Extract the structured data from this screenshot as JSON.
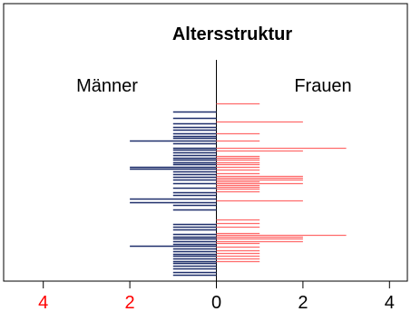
{
  "chart_data": {
    "type": "bar",
    "orientation": "horizontal",
    "title": "Altersstruktur",
    "xlim": [
      -4,
      4
    ],
    "x_ticks": [
      {
        "value": -4,
        "label": "4"
      },
      {
        "value": -2,
        "label": "2"
      },
      {
        "value": 0,
        "label": "0"
      },
      {
        "value": 2,
        "label": "2"
      },
      {
        "value": 4,
        "label": "4"
      }
    ],
    "grid": false,
    "series": [
      {
        "name": "Männer",
        "color": "#1f2f6b",
        "direction": "left",
        "rows": [
          123,
          130,
          136,
          140,
          143,
          147,
          150,
          152,
          155,
          158,
          163,
          165,
          168,
          171,
          174,
          176,
          179,
          181,
          184,
          186,
          189,
          192,
          195,
          198,
          202,
          207,
          212,
          215,
          219,
          223,
          226,
          231,
          247,
          250,
          253,
          258,
          261,
          263,
          266,
          269,
          271,
          274,
          277,
          280,
          282,
          285,
          288,
          290,
          293,
          296,
          300,
          303
        ],
        "values": [
          1,
          1,
          1,
          1,
          1,
          1,
          1,
          1,
          2,
          1,
          1,
          1,
          1,
          1,
          1,
          1,
          1,
          1,
          2,
          2,
          1,
          1,
          1,
          1,
          1,
          1,
          1,
          1,
          2,
          2,
          1,
          1,
          1,
          1,
          1,
          1,
          1,
          1,
          1,
          1,
          2,
          1,
          1,
          1,
          1,
          1,
          1,
          1,
          1,
          1,
          1,
          1
        ]
      },
      {
        "name": "Frauen",
        "color": "#ff6b6b",
        "direction": "right",
        "rows": [
          114,
          134,
          147,
          155,
          163,
          166,
          172,
          174,
          176,
          179,
          181,
          184,
          187,
          191,
          194,
          196,
          198,
          200,
          202,
          204,
          206,
          208,
          211,
          221,
          242,
          246,
          250,
          257,
          259,
          261,
          263,
          266,
          268,
          272,
          276,
          279,
          282,
          285,
          288
        ],
        "values": [
          1,
          2,
          1,
          1,
          3,
          2,
          1,
          1,
          1,
          1,
          1,
          1,
          1,
          1,
          2,
          2,
          2,
          1,
          2,
          1,
          1,
          1,
          1,
          2,
          1,
          1,
          1,
          1,
          3,
          2,
          2,
          2,
          1,
          1,
          1,
          1,
          1,
          1,
          1
        ]
      }
    ]
  }
}
